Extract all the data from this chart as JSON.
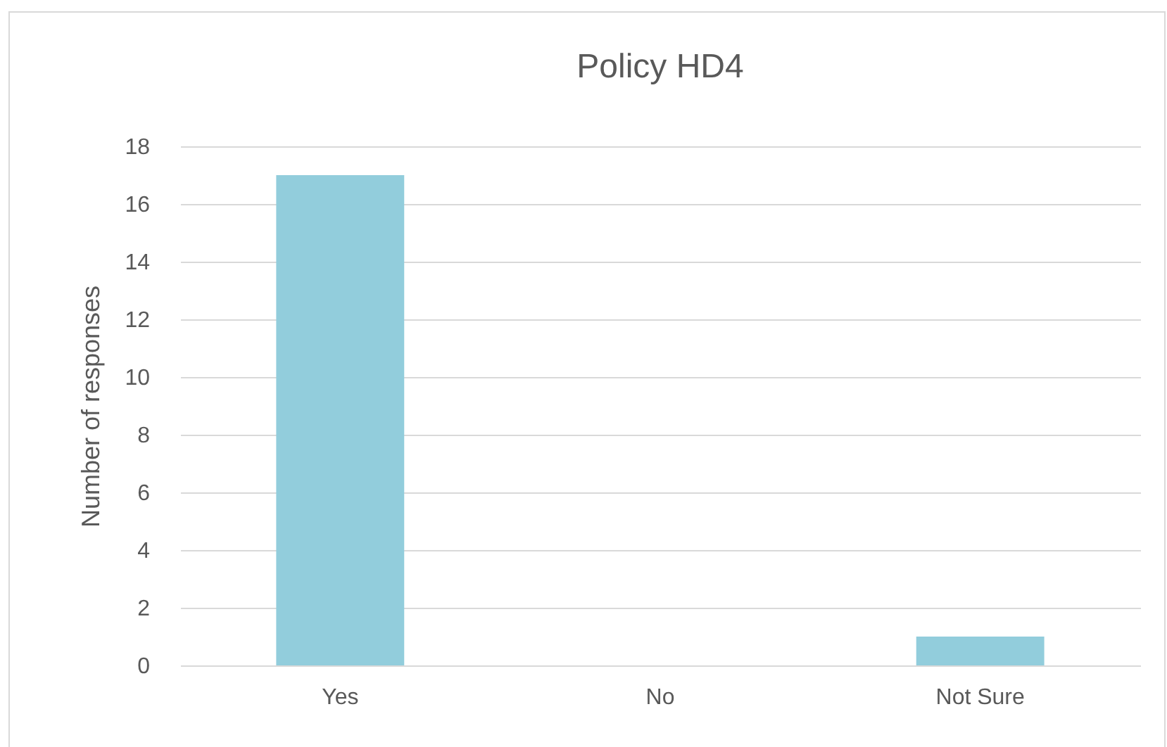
{
  "chart_data": {
    "type": "bar",
    "title": "Policy HD4",
    "ylabel": "Number of responses",
    "categories": [
      "Yes",
      "No",
      "Not Sure"
    ],
    "values": [
      17,
      0,
      1
    ],
    "color": "#92cddc",
    "ylim": [
      0,
      18
    ],
    "yticks": [
      0,
      2,
      4,
      6,
      8,
      10,
      12,
      14,
      16,
      18
    ],
    "grid": "y"
  }
}
